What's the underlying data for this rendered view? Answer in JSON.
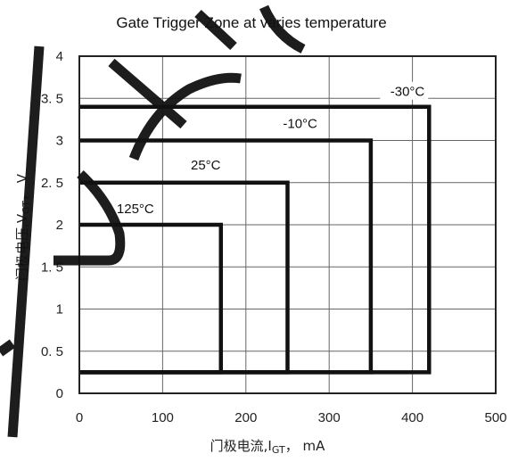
{
  "chart_data": {
    "type": "line",
    "title": "Gate Trigger Zone at varies temperature",
    "xlabel": "门极电流,I_GT, mA",
    "ylabel": "门极电压,V_GT, V",
    "xlim": [
      0,
      500
    ],
    "ylim": [
      0,
      4
    ],
    "xticks": [
      0,
      100,
      200,
      300,
      400,
      500
    ],
    "yticks": [
      0,
      0.5,
      1,
      1.5,
      2,
      2.5,
      3,
      3.5,
      4
    ],
    "xtick_labels": [
      "0",
      "100",
      "200",
      "300",
      "400",
      "500"
    ],
    "ytick_labels": [
      "0",
      "0. 5",
      "1",
      "1. 5",
      "2",
      "2. 5",
      "3",
      "3. 5",
      "4"
    ],
    "grid": true,
    "x_label_parts": {
      "prefix": "门极电流,I",
      "sub": "GT",
      "suffix": "，  mA"
    },
    "y_label_parts": {
      "prefix": "门极电压,V",
      "sub": "GT",
      "suffix": "，  V"
    },
    "series": [
      {
        "name": "-30°C",
        "zone": {
          "x_min": 0,
          "x_max": 420,
          "y_min": 0.25,
          "y_max": 3.4
        }
      },
      {
        "name": "-10°C",
        "zone": {
          "x_min": 0,
          "x_max": 350,
          "y_min": 0.25,
          "y_max": 3.0
        }
      },
      {
        "name": "25°C",
        "zone": {
          "x_min": 0,
          "x_max": 250,
          "y_min": 0.25,
          "y_max": 2.5
        }
      },
      {
        "name": "125°C",
        "zone": {
          "x_min": 0,
          "x_max": 170,
          "y_min": 0.25,
          "y_max": 2.0
        }
      }
    ]
  }
}
